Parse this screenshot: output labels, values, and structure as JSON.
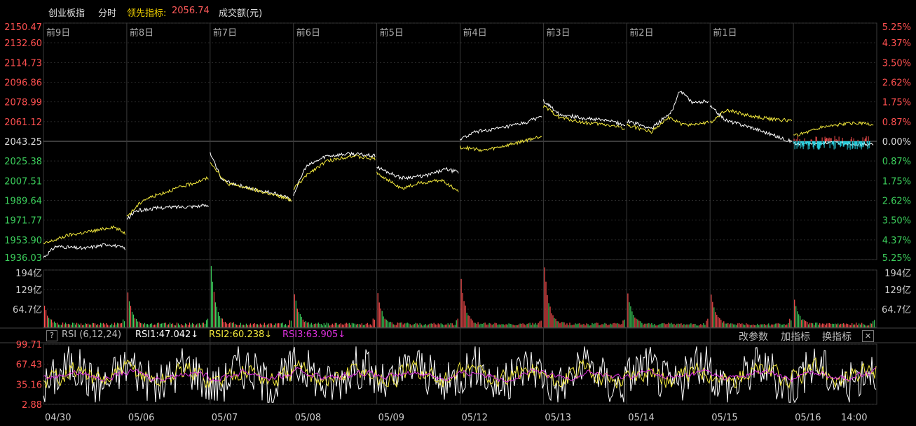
{
  "header": {
    "index_name": "创业板指",
    "mode": "分时",
    "lead_label": "领先指标:",
    "lead_value": "2056.74",
    "volume_label": "成交额(元)"
  },
  "indicator": {
    "help": "?",
    "name": "RSI (6,12,24)",
    "rsi1": "RSI1:47.042↓",
    "rsi2": "RSI2:60.238↓",
    "rsi3": "RSI3:63.905↓",
    "buttons": [
      "改参数",
      "加指标",
      "换指标"
    ],
    "close": "✕"
  },
  "colors": {
    "price_line": "#ffffff",
    "lead_line": "#f4ea3d",
    "up": "#ff5050",
    "down": "#3ccf5c",
    "cyan": "#28d8e8",
    "grid": "#2a2a2a",
    "rsi3": "#e030e0"
  },
  "chart_data": {
    "type": "line",
    "price_axis": {
      "left_labels": [
        "2150.47",
        "2132.60",
        "2114.73",
        "2096.86",
        "2078.99",
        "2061.12",
        "2043.25",
        "2025.38",
        "2007.51",
        "1989.64",
        "1971.77",
        "1953.90",
        "1936.03"
      ],
      "right_labels": [
        "5.25%",
        "4.37%",
        "3.50%",
        "2.62%",
        "1.75%",
        "0.87%",
        "0.00%",
        "0.87%",
        "1.75%",
        "2.62%",
        "3.50%",
        "4.37%",
        "5.25%"
      ],
      "baseline": 2043.25,
      "ylim": [
        1936.03,
        2150.47
      ]
    },
    "day_labels": [
      "前9日",
      "前8日",
      "前7日",
      "前6日",
      "前5日",
      "前4日",
      "前3日",
      "前2日",
      "前1日"
    ],
    "date_labels": [
      "04/30",
      "05/06",
      "05/07",
      "05/08",
      "05/09",
      "05/12",
      "05/13",
      "05/14",
      "05/15",
      "05/16",
      "14:00"
    ],
    "volume_axis": {
      "labels": [
        "194亿",
        "129亿",
        "64.7亿"
      ],
      "ylim": [
        0,
        194
      ]
    },
    "rsi_axis": {
      "labels": [
        "99.71",
        "67.43",
        "35.16",
        "2.88"
      ],
      "ylim": [
        2.88,
        99.71
      ]
    },
    "series": [
      {
        "name": "创业板指",
        "day_paths": [
          [
            [
              0,
              1938
            ],
            [
              0.15,
              1948
            ],
            [
              0.5,
              1946
            ],
            [
              0.8,
              1950
            ],
            [
              1,
              1946
            ]
          ],
          [
            [
              0,
              1972
            ],
            [
              0.1,
              1980
            ],
            [
              0.4,
              1983
            ],
            [
              1,
              1985
            ]
          ],
          [
            [
              0,
              2032
            ],
            [
              0.15,
              2008
            ],
            [
              0.5,
              2000
            ],
            [
              0.8,
              1996
            ],
            [
              1,
              1990
            ]
          ],
          [
            [
              0,
              1995
            ],
            [
              0.15,
              2020
            ],
            [
              0.4,
              2030
            ],
            [
              0.7,
              2032
            ],
            [
              1,
              2030
            ]
          ],
          [
            [
              0,
              2020
            ],
            [
              0.3,
              2010
            ],
            [
              0.6,
              2012
            ],
            [
              0.85,
              2018
            ],
            [
              1,
              2015
            ]
          ],
          [
            [
              0,
              2045
            ],
            [
              0.2,
              2052
            ],
            [
              0.5,
              2055
            ],
            [
              0.8,
              2060
            ],
            [
              1,
              2066
            ]
          ],
          [
            [
              0,
              2080
            ],
            [
              0.2,
              2068
            ],
            [
              0.5,
              2064
            ],
            [
              0.8,
              2062
            ],
            [
              1,
              2058
            ]
          ],
          [
            [
              0,
              2062
            ],
            [
              0.3,
              2055
            ],
            [
              0.55,
              2070
            ],
            [
              0.65,
              2090
            ],
            [
              0.8,
              2078
            ],
            [
              1,
              2080
            ]
          ],
          [
            [
              0,
              2075
            ],
            [
              0.2,
              2062
            ],
            [
              0.5,
              2056
            ],
            [
              0.8,
              2048
            ],
            [
              1,
              2043
            ]
          ],
          [
            [
              0,
              2041
            ],
            [
              0.5,
              2042
            ],
            [
              1,
              2040
            ]
          ]
        ]
      },
      {
        "name": "领先指标",
        "day_paths": [
          [
            [
              0,
              1950
            ],
            [
              0.3,
              1958
            ],
            [
              0.7,
              1963
            ],
            [
              0.85,
              1966
            ],
            [
              1,
              1960
            ]
          ],
          [
            [
              0,
              1975
            ],
            [
              0.2,
              1990
            ],
            [
              0.5,
              1998
            ],
            [
              0.8,
              2005
            ],
            [
              1,
              2010
            ]
          ],
          [
            [
              0,
              2025
            ],
            [
              0.2,
              2005
            ],
            [
              0.5,
              2000
            ],
            [
              0.8,
              1994
            ],
            [
              1,
              1990
            ]
          ],
          [
            [
              0,
              2000
            ],
            [
              0.2,
              2015
            ],
            [
              0.4,
              2025
            ],
            [
              0.7,
              2030
            ],
            [
              1,
              2027
            ]
          ],
          [
            [
              0,
              2015
            ],
            [
              0.3,
              2000
            ],
            [
              0.5,
              2005
            ],
            [
              0.8,
              2008
            ],
            [
              1,
              1998
            ]
          ],
          [
            [
              0,
              2038
            ],
            [
              0.3,
              2035
            ],
            [
              0.6,
              2040
            ],
            [
              1,
              2048
            ]
          ],
          [
            [
              0,
              2075
            ],
            [
              0.2,
              2065
            ],
            [
              0.5,
              2060
            ],
            [
              0.8,
              2058
            ],
            [
              1,
              2055
            ]
          ],
          [
            [
              0,
              2058
            ],
            [
              0.3,
              2052
            ],
            [
              0.5,
              2065
            ],
            [
              0.7,
              2058
            ],
            [
              1,
              2060
            ]
          ],
          [
            [
              0,
              2060
            ],
            [
              0.2,
              2072
            ],
            [
              0.5,
              2066
            ],
            [
              0.8,
              2063
            ],
            [
              1,
              2062
            ]
          ],
          [
            [
              0,
              2048
            ],
            [
              0.4,
              2057
            ],
            [
              0.8,
              2060
            ],
            [
              1,
              2058
            ]
          ]
        ]
      },
      {
        "name": "volume",
        "day_pattern": "decaying spike at open"
      },
      {
        "name": "RSI1"
      },
      {
        "name": "RSI2"
      },
      {
        "name": "RSI3"
      }
    ]
  }
}
